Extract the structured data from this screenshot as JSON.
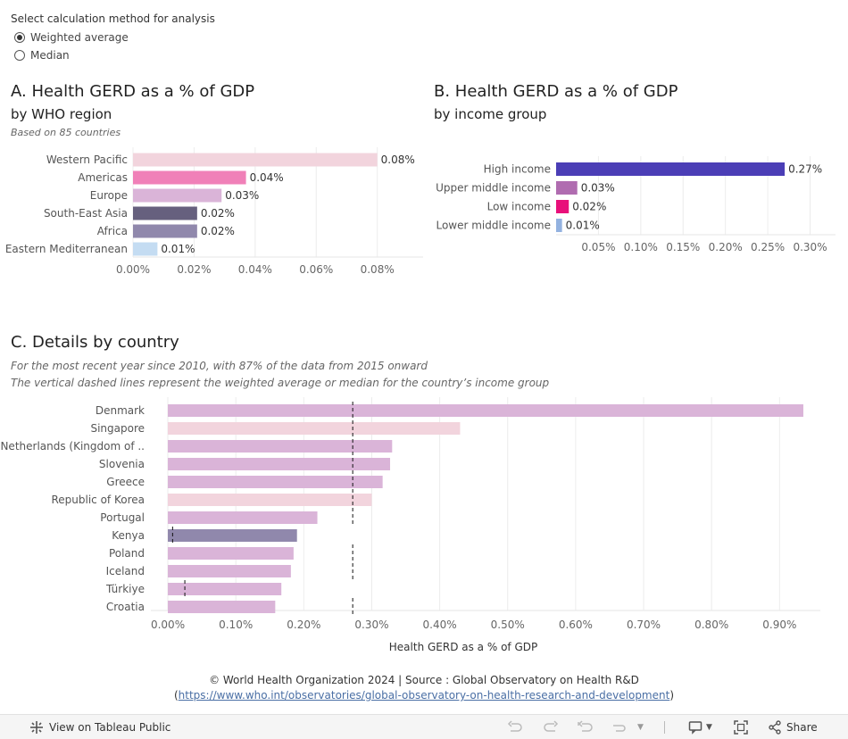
{
  "controls": {
    "title": "Select calculation method for analysis",
    "options": [
      {
        "label": "Weighted average",
        "selected": true
      },
      {
        "label": "Median",
        "selected": false
      }
    ]
  },
  "panel_a": {
    "title": "A. Health GERD as a % of GDP",
    "subtitle": "by WHO region",
    "note": "Based on 85 countries"
  },
  "panel_b": {
    "title": "B. Health GERD as a % of GDP",
    "subtitle": "by income group"
  },
  "panel_c": {
    "title": "C. Details by country",
    "note1": "For the most recent year since 2010, with 87% of the data from  2015 onward",
    "note2": "The vertical dashed lines represent the weighted average or median for the country’s income group"
  },
  "chart_data": [
    {
      "id": "region",
      "type": "bar",
      "orientation": "horizontal",
      "categories": [
        "Western Pacific",
        "Americas",
        "Europe",
        "South-East Asia",
        "Africa",
        "Eastern Mediterranean"
      ],
      "values": [
        0.08,
        0.037,
        0.029,
        0.021,
        0.021,
        0.008
      ],
      "labels": [
        "0.08%",
        "0.04%",
        "0.03%",
        "0.02%",
        "0.02%",
        "0.01%"
      ],
      "colors": [
        "#f2d4dd",
        "#f080b8",
        "#dab4d8",
        "#66607e",
        "#9088ac",
        "#c4dcf2"
      ],
      "xlim": [
        0,
        0.095
      ],
      "xticks": [
        0,
        0.02,
        0.04,
        0.06,
        0.08
      ],
      "xtick_labels": [
        "0.00%",
        "0.02%",
        "0.04%",
        "0.06%",
        "0.08%"
      ]
    },
    {
      "id": "income",
      "type": "bar",
      "orientation": "horizontal",
      "categories": [
        "High income",
        "Upper middle income",
        "Low income",
        "Lower middle income"
      ],
      "values": [
        0.27,
        0.025,
        0.015,
        0.007
      ],
      "labels": [
        "0.27%",
        "0.03%",
        "0.02%",
        "0.01%"
      ],
      "colors": [
        "#4b3eb6",
        "#b06cb0",
        "#e8107a",
        "#93b2e0"
      ],
      "xlim": [
        0,
        0.33
      ],
      "xticks": [
        0.05,
        0.1,
        0.15,
        0.2,
        0.25,
        0.3
      ],
      "xtick_labels": [
        "0.05%",
        "0.10%",
        "0.15%",
        "0.20%",
        "0.25%",
        "0.30%"
      ]
    },
    {
      "id": "country",
      "type": "bar",
      "orientation": "horizontal",
      "categories": [
        "Denmark",
        "Singapore",
        "Netherlands (Kingdom of ..",
        "Slovenia",
        "Greece",
        "Republic of Korea",
        "Portugal",
        "Kenya",
        "Poland",
        "Iceland",
        "Türkiye",
        "Croatia"
      ],
      "values": [
        0.935,
        0.43,
        0.33,
        0.327,
        0.316,
        0.3,
        0.22,
        0.19,
        0.185,
        0.181,
        0.167,
        0.158
      ],
      "colors": [
        "#dab4d8",
        "#f2d4dd",
        "#dab4d8",
        "#dab4d8",
        "#dab4d8",
        "#f2d4dd",
        "#dab4d8",
        "#9088ac",
        "#dab4d8",
        "#dab4d8",
        "#dab4d8",
        "#dab4d8"
      ],
      "reference_lines": [
        {
          "value": 0.272,
          "from": 0,
          "to": 6
        },
        {
          "value": 0.007,
          "from": 7,
          "to": 7
        },
        {
          "value": 0.272,
          "from": 8,
          "to": 9
        },
        {
          "value": 0.025,
          "from": 10,
          "to": 10
        },
        {
          "value": 0.272,
          "from": 11,
          "to": 11
        }
      ],
      "xlim": [
        -0.025,
        0.96
      ],
      "xticks": [
        0,
        0.1,
        0.2,
        0.3,
        0.4,
        0.5,
        0.6,
        0.7,
        0.8,
        0.9
      ],
      "xtick_labels": [
        "0.00%",
        "0.10%",
        "0.20%",
        "0.30%",
        "0.40%",
        "0.50%",
        "0.60%",
        "0.70%",
        "0.80%",
        "0.90%"
      ],
      "xlabel": "Health GERD as a % of GDP"
    }
  ],
  "footer": {
    "line1": "© World Health Organization 2024 | Source : Global Observatory on Health R&D",
    "paren_open": "(",
    "link": "https://www.who.int/observatories/global-observatory-on-health-research-and-development",
    "paren_close": ")"
  },
  "toolbar": {
    "view_label": "View on Tableau Public",
    "share_label": "Share"
  }
}
